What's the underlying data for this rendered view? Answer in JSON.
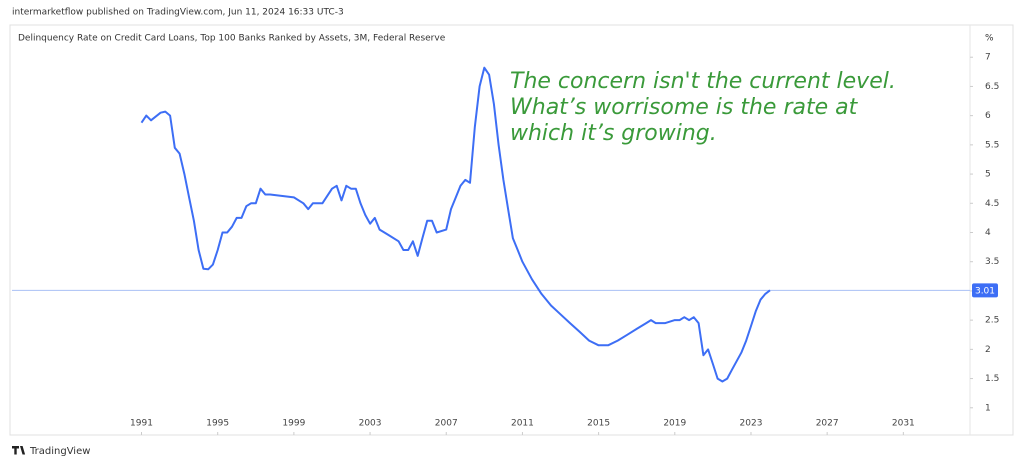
{
  "header": {
    "byline": "intermarketflow published on TradingView.com, Jun 11, 2024 16:33 UTC-3"
  },
  "footer": {
    "brand": "TradingView"
  },
  "chart_data": {
    "type": "line",
    "title": "Delinquency Rate on Credit Card Loans, Top 100 Banks Ranked by Assets, 3M, Federal Reserve",
    "y_unit": "%",
    "annotation": [
      "The concern isn't the current level.",
      "What’s worrisome is the rate at",
      "which it’s growing."
    ],
    "x": [
      1991,
      1991.25,
      1991.5,
      1992,
      1992.25,
      1992.5,
      1992.75,
      1993,
      1993.25,
      1993.5,
      1993.75,
      1994,
      1994.25,
      1994.5,
      1994.75,
      1995,
      1995.25,
      1995.5,
      1995.75,
      1996,
      1996.25,
      1996.5,
      1996.75,
      1997,
      1997.25,
      1997.5,
      1997.75,
      1999,
      1999.5,
      1999.75,
      2000,
      2000.5,
      2001,
      2001.25,
      2001.5,
      2001.75,
      2002,
      2002.25,
      2002.5,
      2002.75,
      2003,
      2003.25,
      2003.5,
      2004,
      2004.5,
      2004.75,
      2005,
      2005.25,
      2005.5,
      2005.75,
      2006,
      2006.25,
      2006.5,
      2007,
      2007.25,
      2007.5,
      2007.75,
      2008,
      2008.25,
      2008.5,
      2008.75,
      2009,
      2009.25,
      2009.5,
      2009.75,
      2010,
      2010.25,
      2010.5,
      2010.75,
      2011,
      2011.5,
      2012,
      2012.5,
      2013,
      2013.5,
      2014,
      2014.5,
      2015,
      2015.5,
      2016,
      2016.5,
      2017,
      2017.5,
      2017.75,
      2018,
      2018.5,
      2019,
      2019.25,
      2019.5,
      2019.75,
      2020,
      2020.25,
      2020.5,
      2020.75,
      2021,
      2021.25,
      2021.5,
      2021.75,
      2022,
      2022.5,
      2022.75,
      2023,
      2023.25,
      2023.5,
      2023.75,
      2024
    ],
    "series": [
      {
        "color": "#3d6ef5",
        "values": [
          5.88,
          6.0,
          5.92,
          6.05,
          6.07,
          6.0,
          5.45,
          5.35,
          5.0,
          4.6,
          4.2,
          3.7,
          3.38,
          3.37,
          3.45,
          3.7,
          4.0,
          4.0,
          4.1,
          4.25,
          4.25,
          4.45,
          4.5,
          4.5,
          4.75,
          4.65,
          4.65,
          4.6,
          4.5,
          4.4,
          4.5,
          4.5,
          4.75,
          4.8,
          4.55,
          4.8,
          4.75,
          4.75,
          4.5,
          4.3,
          4.15,
          4.25,
          4.05,
          3.95,
          3.85,
          3.7,
          3.7,
          3.85,
          3.6,
          3.9,
          4.2,
          4.2,
          4.0,
          4.05,
          4.4,
          4.6,
          4.8,
          4.9,
          4.85,
          5.8,
          6.5,
          6.82,
          6.7,
          6.2,
          5.5,
          4.9,
          4.4,
          3.9,
          3.7,
          3.5,
          3.2,
          2.95,
          2.75,
          2.6,
          2.45,
          2.3,
          2.15,
          2.07,
          2.07,
          2.15,
          2.25,
          2.35,
          2.45,
          2.5,
          2.45,
          2.45,
          2.5,
          2.5,
          2.55,
          2.5,
          2.55,
          2.45,
          1.9,
          2.0,
          1.75,
          1.5,
          1.45,
          1.5,
          1.65,
          1.95,
          2.15,
          2.4,
          2.65,
          2.85,
          2.95,
          3.01
        ]
      }
    ],
    "price_line": 3.01,
    "xlim": [
      1984.2,
      2034.5
    ],
    "xticks": [
      1991,
      1995,
      1999,
      2003,
      2007,
      2011,
      2015,
      2019,
      2023,
      2027,
      2031
    ],
    "ylim": [
      0.5,
      7.5
    ],
    "yticks": [
      7,
      6.5,
      6,
      5.5,
      5,
      4.5,
      4,
      3.5,
      3,
      2.5,
      2,
      1.5,
      1
    ]
  }
}
